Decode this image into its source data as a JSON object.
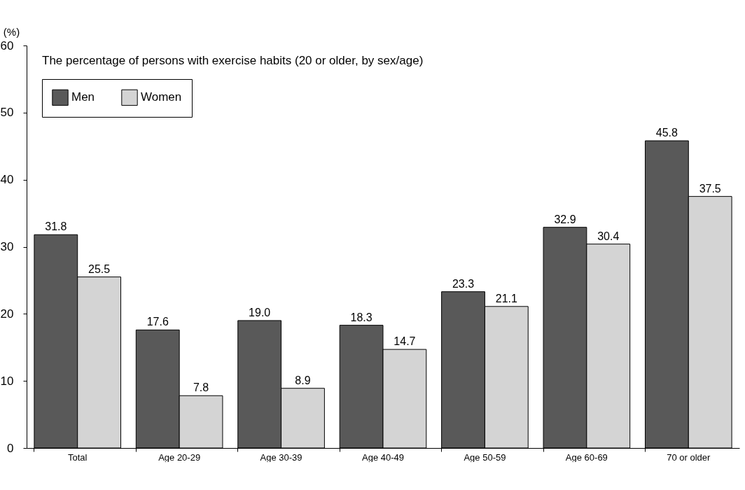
{
  "chart_data": {
    "type": "bar",
    "title": "The percentage of persons with exercise habits (20 or older, by sex/age)",
    "ylabel": "(%)",
    "categories": [
      "Total",
      "Age 20-29",
      "Age 30-39",
      "Age 40-49",
      "Age 50-59",
      "Age 60-69",
      "70 or older"
    ],
    "series": [
      {
        "name": "Men",
        "color": "#595959",
        "values": [
          31.8,
          17.6,
          19.0,
          18.3,
          23.3,
          32.9,
          45.8
        ],
        "value_labels": [
          "31.8",
          "17.6",
          "19.0",
          "18.3",
          "23.3",
          "32.9",
          "45.8"
        ]
      },
      {
        "name": "Women",
        "color": "#d4d4d4",
        "values": [
          25.5,
          7.8,
          8.9,
          14.7,
          21.1,
          30.4,
          37.5
        ],
        "value_labels": [
          "25.5",
          "7.8",
          "8.9",
          "14.7",
          "21.1",
          "30.4",
          "37.5"
        ]
      }
    ],
    "ylim": [
      0,
      60
    ],
    "yticks": [
      0,
      10,
      20,
      30,
      40,
      50,
      60
    ],
    "grid": false,
    "legend": "top left"
  }
}
